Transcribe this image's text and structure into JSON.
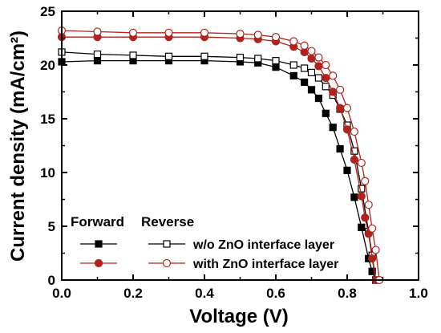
{
  "chart_data": {
    "type": "line",
    "xlabel": "Voltage (V)",
    "ylabel": "Current density (mA/cm²)",
    "xlim": [
      0.0,
      1.0
    ],
    "ylim": [
      0,
      25
    ],
    "xticks": [
      "0.0",
      "0.2",
      "0.4",
      "0.6",
      "0.8",
      "1.0"
    ],
    "yticks": [
      "0",
      "5",
      "10",
      "15",
      "20",
      "25"
    ],
    "legend": {
      "headers": [
        "Forward",
        "Reverse"
      ],
      "rows": [
        "w/o ZnO interface layer",
        "with ZnO interface layer"
      ],
      "placement": "bottom-left"
    },
    "series": [
      {
        "scan": "Forward",
        "row": "w/o ZnO interface layer",
        "color": "#000000",
        "marker": "filled-square",
        "x": [
          0.0,
          0.1,
          0.2,
          0.3,
          0.4,
          0.5,
          0.55,
          0.6,
          0.65,
          0.68,
          0.7,
          0.72,
          0.74,
          0.76,
          0.78,
          0.8,
          0.82,
          0.84,
          0.86,
          0.87,
          0.88
        ],
        "y": [
          20.3,
          20.4,
          20.4,
          20.4,
          20.4,
          20.3,
          20.2,
          19.8,
          19.0,
          18.4,
          17.7,
          16.9,
          15.5,
          14.2,
          12.2,
          10.2,
          7.7,
          4.9,
          2.0,
          0.8,
          0.0
        ]
      },
      {
        "scan": "Reverse",
        "row": "w/o ZnO interface layer",
        "color": "#000000",
        "marker": "open-square",
        "x": [
          0.0,
          0.1,
          0.2,
          0.3,
          0.4,
          0.5,
          0.55,
          0.6,
          0.65,
          0.68,
          0.7,
          0.72,
          0.74,
          0.76,
          0.78,
          0.8,
          0.82,
          0.84,
          0.86,
          0.87,
          0.88
        ],
        "y": [
          21.2,
          21.0,
          20.9,
          20.8,
          20.8,
          20.7,
          20.6,
          20.4,
          20.0,
          19.7,
          19.3,
          18.8,
          18.0,
          17.2,
          15.9,
          14.4,
          12.0,
          8.5,
          4.5,
          2.3,
          0.0
        ]
      },
      {
        "scan": "Forward",
        "row": "with ZnO interface layer",
        "color": "#b0231c",
        "marker": "filled-circle",
        "x": [
          0.0,
          0.1,
          0.2,
          0.3,
          0.4,
          0.5,
          0.55,
          0.6,
          0.65,
          0.68,
          0.7,
          0.72,
          0.74,
          0.76,
          0.78,
          0.8,
          0.82,
          0.84,
          0.85,
          0.86,
          0.87,
          0.88
        ],
        "y": [
          22.6,
          22.6,
          22.6,
          22.6,
          22.6,
          22.5,
          22.4,
          22.2,
          21.7,
          21.2,
          20.6,
          19.9,
          18.8,
          17.5,
          16.0,
          14.0,
          11.2,
          7.8,
          5.8,
          4.3,
          2.0,
          0.0
        ]
      },
      {
        "scan": "Reverse",
        "row": "with ZnO interface layer",
        "color": "#b0231c",
        "marker": "open-circle",
        "x": [
          0.0,
          0.1,
          0.2,
          0.3,
          0.4,
          0.5,
          0.55,
          0.6,
          0.65,
          0.68,
          0.7,
          0.72,
          0.74,
          0.76,
          0.78,
          0.8,
          0.82,
          0.84,
          0.85,
          0.86,
          0.87,
          0.88,
          0.89
        ],
        "y": [
          23.2,
          23.1,
          23.0,
          23.0,
          23.0,
          22.9,
          22.8,
          22.6,
          22.2,
          21.8,
          21.3,
          20.7,
          20.0,
          19.0,
          17.7,
          16.0,
          13.8,
          10.9,
          9.2,
          7.0,
          4.8,
          2.8,
          0.0
        ]
      }
    ]
  }
}
